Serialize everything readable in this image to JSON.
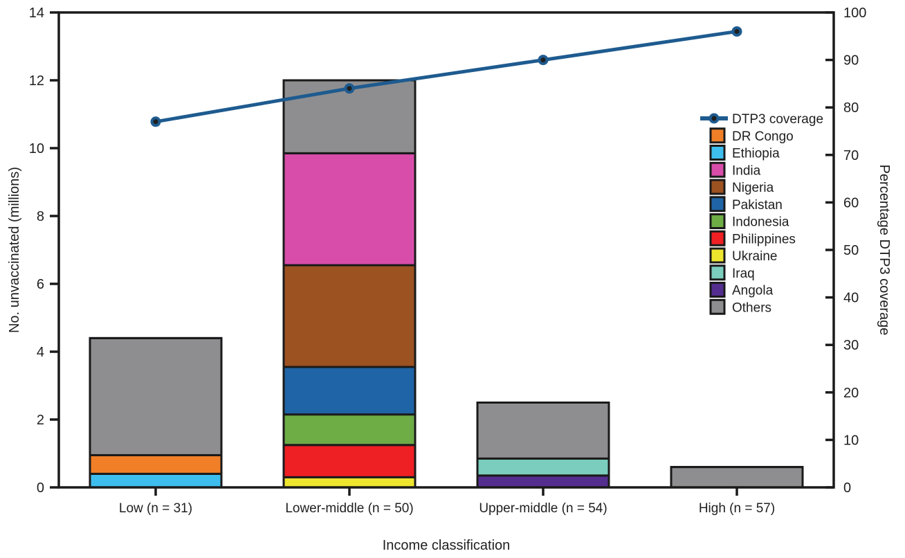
{
  "chart_data": {
    "type": "bar",
    "subtype": "stacked-bars-with-line-overlay",
    "xlabel": "Income classification",
    "left_axis": {
      "label": "No. unvaccinated (millions)",
      "min": 0,
      "max": 14,
      "tick_step": 2,
      "ticks": [
        0,
        2,
        4,
        6,
        8,
        10,
        12,
        14
      ]
    },
    "right_axis": {
      "label": "Percentage DTP3 coverage",
      "min": 0,
      "max": 100,
      "tick_step": 10,
      "ticks": [
        0,
        10,
        20,
        30,
        40,
        50,
        60,
        70,
        80,
        90,
        100
      ]
    },
    "categories": [
      "Low (n = 31)",
      "Lower-middle (n = 50)",
      "Upper-middle (n = 54)",
      "High (n = 57)"
    ],
    "grid": false,
    "frame": true,
    "colors": {
      "DTP3 coverage": "#1E5B8F",
      "DR Congo": "#F07F28",
      "Ethiopia": "#3EBEEE",
      "India": "#D84DA9",
      "Nigeria": "#9D5221",
      "Pakistan": "#1F64A6",
      "Indonesia": "#6EAC46",
      "Philippines": "#EE2024",
      "Ukraine": "#EEE52F",
      "Iraq": "#7BCDBD",
      "Angola": "#542E8F",
      "Others": "#8E8E90"
    },
    "legend": {
      "position": "inside-right",
      "entries": [
        {
          "label": "DTP3 coverage",
          "type": "line-marker"
        },
        {
          "label": "DR Congo",
          "type": "swatch"
        },
        {
          "label": "Ethiopia",
          "type": "swatch"
        },
        {
          "label": "India",
          "type": "swatch"
        },
        {
          "label": "Nigeria",
          "type": "swatch"
        },
        {
          "label": "Pakistan",
          "type": "swatch"
        },
        {
          "label": "Indonesia",
          "type": "swatch"
        },
        {
          "label": "Philippines",
          "type": "swatch"
        },
        {
          "label": "Ukraine",
          "type": "swatch"
        },
        {
          "label": "Iraq",
          "type": "swatch"
        },
        {
          "label": "Angola",
          "type": "swatch"
        },
        {
          "label": "Others",
          "type": "swatch"
        }
      ]
    },
    "bars": [
      {
        "category": "Low (n = 31)",
        "total": 4.4,
        "segments_bottom_to_top": [
          {
            "name": "Ethiopia",
            "value": 0.4
          },
          {
            "name": "DR Congo",
            "value": 0.55
          },
          {
            "name": "Others",
            "value": 3.45
          }
        ]
      },
      {
        "category": "Lower-middle (n = 50)",
        "total": 12.0,
        "segments_bottom_to_top": [
          {
            "name": "Ukraine",
            "value": 0.3
          },
          {
            "name": "Philippines",
            "value": 0.95
          },
          {
            "name": "Indonesia",
            "value": 0.9
          },
          {
            "name": "Pakistan",
            "value": 1.4
          },
          {
            "name": "Nigeria",
            "value": 3.0
          },
          {
            "name": "India",
            "value": 3.3
          },
          {
            "name": "Others",
            "value": 2.15
          }
        ]
      },
      {
        "category": "Upper-middle (n = 54)",
        "total": 2.5,
        "segments_bottom_to_top": [
          {
            "name": "Angola",
            "value": 0.35
          },
          {
            "name": "Iraq",
            "value": 0.5
          },
          {
            "name": "Others",
            "value": 1.65
          }
        ]
      },
      {
        "category": "High (n = 57)",
        "total": 0.6,
        "segments_bottom_to_top": [
          {
            "name": "Others",
            "value": 0.6
          }
        ]
      }
    ],
    "line_series": {
      "name": "DTP3 coverage",
      "axis": "right",
      "values": [
        77,
        84,
        90,
        96
      ]
    }
  }
}
